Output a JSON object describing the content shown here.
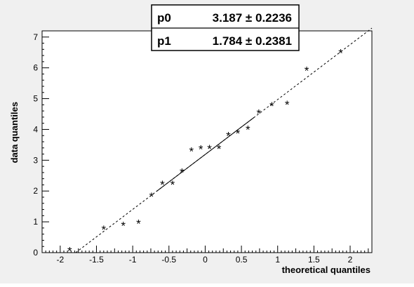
{
  "chart_data": {
    "type": "scatter",
    "title": "",
    "xlabel": "theoretical quantiles",
    "ylabel": "data quantiles",
    "xlim": [
      -2.25,
      2.3
    ],
    "ylim": [
      0,
      7.2
    ],
    "x_ticks": [
      -2,
      -1.5,
      -1,
      -0.5,
      0,
      0.5,
      1,
      1.5,
      2
    ],
    "x_tick_labels": [
      "-2",
      "-1.5",
      "-1",
      "-0.5",
      "0",
      "0.5",
      "1",
      "1.5",
      "2"
    ],
    "y_ticks": [
      0,
      1,
      2,
      3,
      4,
      5,
      6,
      7
    ],
    "y_tick_labels": [
      "0",
      "1",
      "2",
      "3",
      "4",
      "5",
      "6",
      "7"
    ],
    "grid": false,
    "marker": "*",
    "points": [
      {
        "x": -1.87,
        "y": 0.08
      },
      {
        "x": -1.4,
        "y": 0.78
      },
      {
        "x": -1.13,
        "y": 0.9
      },
      {
        "x": -0.92,
        "y": 0.97
      },
      {
        "x": -0.74,
        "y": 1.85
      },
      {
        "x": -0.59,
        "y": 2.23
      },
      {
        "x": -0.45,
        "y": 2.23
      },
      {
        "x": -0.32,
        "y": 2.63
      },
      {
        "x": -0.19,
        "y": 3.32
      },
      {
        "x": -0.06,
        "y": 3.38
      },
      {
        "x": 0.06,
        "y": 3.4
      },
      {
        "x": 0.19,
        "y": 3.4
      },
      {
        "x": 0.32,
        "y": 3.82
      },
      {
        "x": 0.45,
        "y": 3.9
      },
      {
        "x": 0.59,
        "y": 4.02
      },
      {
        "x": 0.74,
        "y": 4.55
      },
      {
        "x": 0.92,
        "y": 4.78
      },
      {
        "x": 1.13,
        "y": 4.83
      },
      {
        "x": 1.4,
        "y": 5.93
      },
      {
        "x": 1.87,
        "y": 6.5
      }
    ],
    "fit": {
      "p0": 3.187,
      "p1": 1.784,
      "solid_x_range": [
        -0.6745,
        0.6745
      ]
    },
    "stats_box": {
      "rows": [
        {
          "name": "p0",
          "value": "3.187 ± 0.2236"
        },
        {
          "name": "p1",
          "value": "1.784 ± 0.2381"
        }
      ]
    }
  }
}
